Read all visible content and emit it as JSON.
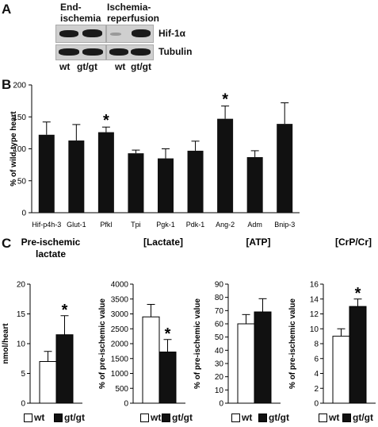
{
  "panels": {
    "a": "A",
    "b": "B",
    "c": "C"
  },
  "western_blot": {
    "headers": [
      "End-ischemia",
      "Ischemia-reperfusion"
    ],
    "header_lines": [
      [
        "End-",
        "ischemia"
      ],
      [
        "Ischemia-",
        "reperfusion"
      ]
    ],
    "row_labels": [
      "Hif-1α",
      "Tubulin"
    ],
    "lane_labels": [
      "wt",
      "gt/gt",
      "wt",
      "gt/gt"
    ]
  },
  "colors": {
    "black_bar": "#111111",
    "white_bar": "#ffffff",
    "blot_bg": "#cfcfcf"
  },
  "chart_data": [
    {
      "type": "bar",
      "panel": "B",
      "title": "",
      "xlabel": "",
      "ylabel": "% of wild-type heart",
      "ylim": [
        0,
        200
      ],
      "yticks": [
        0,
        50,
        100,
        150,
        200
      ],
      "categories": [
        "Hif-p4h-3",
        "Glut-1",
        "Pfkl",
        "Tpi",
        "Pgk-1",
        "Pdk-1",
        "Ang-2",
        "Adm",
        "Bnip-3"
      ],
      "values": [
        122,
        113,
        126,
        93,
        85,
        97,
        147,
        87,
        139
      ],
      "errors": [
        20,
        25,
        8,
        5,
        15,
        15,
        20,
        10,
        33
      ],
      "significant": [
        "",
        "",
        "*",
        "",
        "",
        "",
        "*",
        "",
        ""
      ],
      "grid": false
    },
    {
      "type": "bar",
      "panel": "C",
      "title": "Pre-ischemic lactate",
      "title_lines": [
        "Pre-ischemic",
        "lactate"
      ],
      "ylabel": "nmol/heart",
      "ylim": [
        0,
        20
      ],
      "yticks": [
        0,
        5,
        10,
        15,
        20
      ],
      "series": [
        {
          "name": "wt",
          "value": 7,
          "error": 1.7,
          "sig": ""
        },
        {
          "name": "gt/gt",
          "value": 11.5,
          "error": 3.2,
          "sig": "*"
        }
      ],
      "grid": false
    },
    {
      "type": "bar",
      "panel": "C",
      "title": "[Lactate]",
      "ylabel": "% of pre-ischemic value",
      "ylim": [
        0,
        4000
      ],
      "yticks": [
        0,
        500,
        1000,
        1500,
        2000,
        2500,
        3000,
        3500,
        4000
      ],
      "series": [
        {
          "name": "wt",
          "value": 2900,
          "error": 420,
          "sig": ""
        },
        {
          "name": "gt/gt",
          "value": 1720,
          "error": 420,
          "sig": "*"
        }
      ],
      "grid": false
    },
    {
      "type": "bar",
      "panel": "C",
      "title": "[ATP]",
      "ylabel": "% of pre-ischemic value",
      "ylim": [
        0,
        90
      ],
      "yticks": [
        0,
        10,
        20,
        30,
        40,
        50,
        60,
        70,
        80,
        90
      ],
      "series": [
        {
          "name": "wt",
          "value": 60,
          "error": 7,
          "sig": ""
        },
        {
          "name": "gt/gt",
          "value": 69,
          "error": 10,
          "sig": ""
        }
      ],
      "grid": false
    },
    {
      "type": "bar",
      "panel": "C",
      "title": "[CrP/Cr]",
      "ylabel": "% of pre-ischemic value",
      "ylim": [
        0,
        16
      ],
      "yticks": [
        0,
        2,
        4,
        6,
        8,
        10,
        12,
        14,
        16
      ],
      "series": [
        {
          "name": "wt",
          "value": 9,
          "error": 1,
          "sig": ""
        },
        {
          "name": "gt/gt",
          "value": 13,
          "error": 1,
          "sig": "*"
        }
      ],
      "grid": false
    }
  ],
  "legend": {
    "wt": "wt",
    "gtgt": "gt/gt"
  }
}
